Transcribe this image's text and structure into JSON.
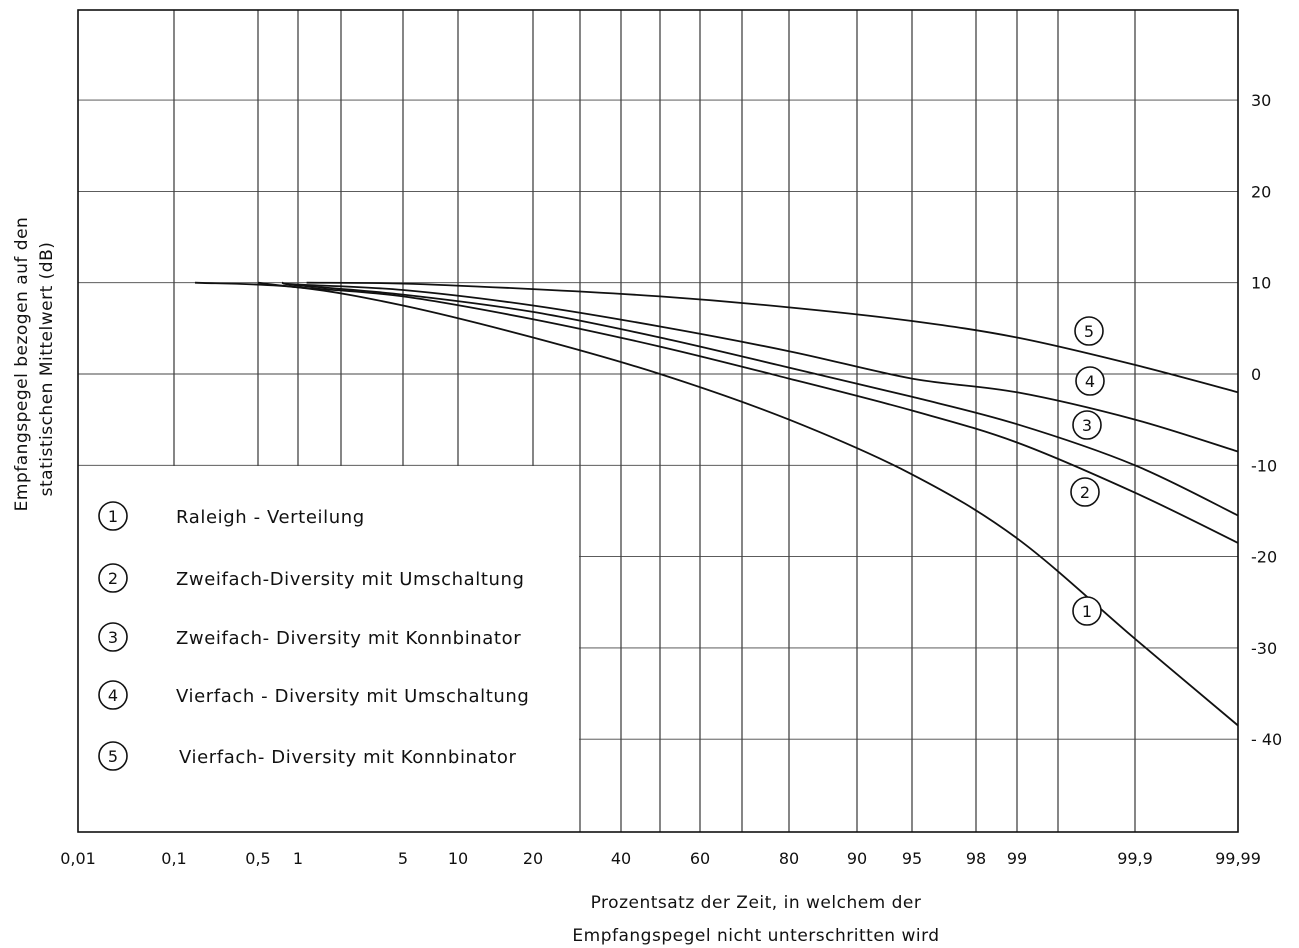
{
  "chart_data": {
    "type": "line",
    "xscale": "normal-probability",
    "xlabel": [
      "Prozentsatz der Zeit, in welchem der",
      "Empfangspegel nicht unterschritten wird"
    ],
    "ylabel": [
      "Empfangspegel bezogen auf den",
      "statistischen Mittelwert (dB)"
    ],
    "x_ticks": [
      0.01,
      0.1,
      0.5,
      1,
      5,
      10,
      20,
      40,
      60,
      80,
      90,
      95,
      98,
      99,
      99.9,
      99.99
    ],
    "x_tick_labels": [
      "0,01",
      "0,1",
      "0,5",
      "1",
      "5",
      "10",
      "20",
      "40",
      "60",
      "80",
      "90",
      "95",
      "98",
      "99",
      "99,9",
      "99,99"
    ],
    "x_grid": [
      0.01,
      0.1,
      0.5,
      1,
      2,
      5,
      10,
      20,
      30,
      40,
      50,
      60,
      70,
      80,
      90,
      95,
      98,
      99,
      99.5,
      99.9,
      99.99
    ],
    "y_ticks": [
      30,
      20,
      10,
      0,
      -10,
      -20,
      -30,
      -40
    ],
    "y_tick_labels": [
      "30",
      "20",
      "10",
      "0",
      "-10",
      "-20",
      "-30",
      "- 40"
    ],
    "ylim": [
      -50,
      40
    ],
    "grid": true,
    "legend": {
      "position": "lower-left",
      "items": [
        {
          "num": "1",
          "label": "Raleigh - Verteilung"
        },
        {
          "num": "2",
          "label": "Zweifach-Diversity mit Umschaltung"
        },
        {
          "num": "3",
          "label": "Zweifach- Diversity mit Konnbinator"
        },
        {
          "num": "4",
          "label": "Vierfach - Diversity mit Umschaltung"
        },
        {
          "num": "5",
          "label": "Vierfach- Diversity mit Konnbinator"
        }
      ]
    },
    "series": [
      {
        "name": "1",
        "x": [
          0.2,
          1,
          5,
          20,
          50,
          80,
          95,
          99,
          99.9,
          99.99
        ],
        "y": [
          10,
          9.5,
          7.5,
          4,
          0,
          -5,
          -11,
          -18,
          -29,
          -38.5
        ]
      },
      {
        "name": "2",
        "x": [
          0.5,
          1,
          5,
          20,
          50,
          80,
          95,
          99,
          99.9,
          99.99
        ],
        "y": [
          10,
          9.5,
          8.5,
          6,
          3,
          -0.5,
          -4,
          -7.5,
          -13,
          -18.5
        ]
      },
      {
        "name": "3",
        "x": [
          0.8,
          1,
          5,
          20,
          50,
          80,
          95,
          99,
          99.9,
          99.99
        ],
        "y": [
          10,
          9.7,
          8.7,
          6.8,
          4,
          0.7,
          -2.5,
          -5.5,
          -10,
          -15.5
        ]
      },
      {
        "name": "4",
        "x": [
          0.8,
          1,
          5,
          20,
          50,
          80,
          95,
          99,
          99.9,
          99.99
        ],
        "y": [
          10,
          9.8,
          9.2,
          7.5,
          5.2,
          2.5,
          -0.5,
          -2,
          -5,
          -8.5
        ]
      },
      {
        "name": "5",
        "x": [
          1.2,
          5,
          20,
          50,
          80,
          95,
          99,
          99.9,
          99.99
        ],
        "y": [
          10,
          9.9,
          9.3,
          8.5,
          7.3,
          5.8,
          4,
          1,
          -2
        ]
      }
    ]
  }
}
